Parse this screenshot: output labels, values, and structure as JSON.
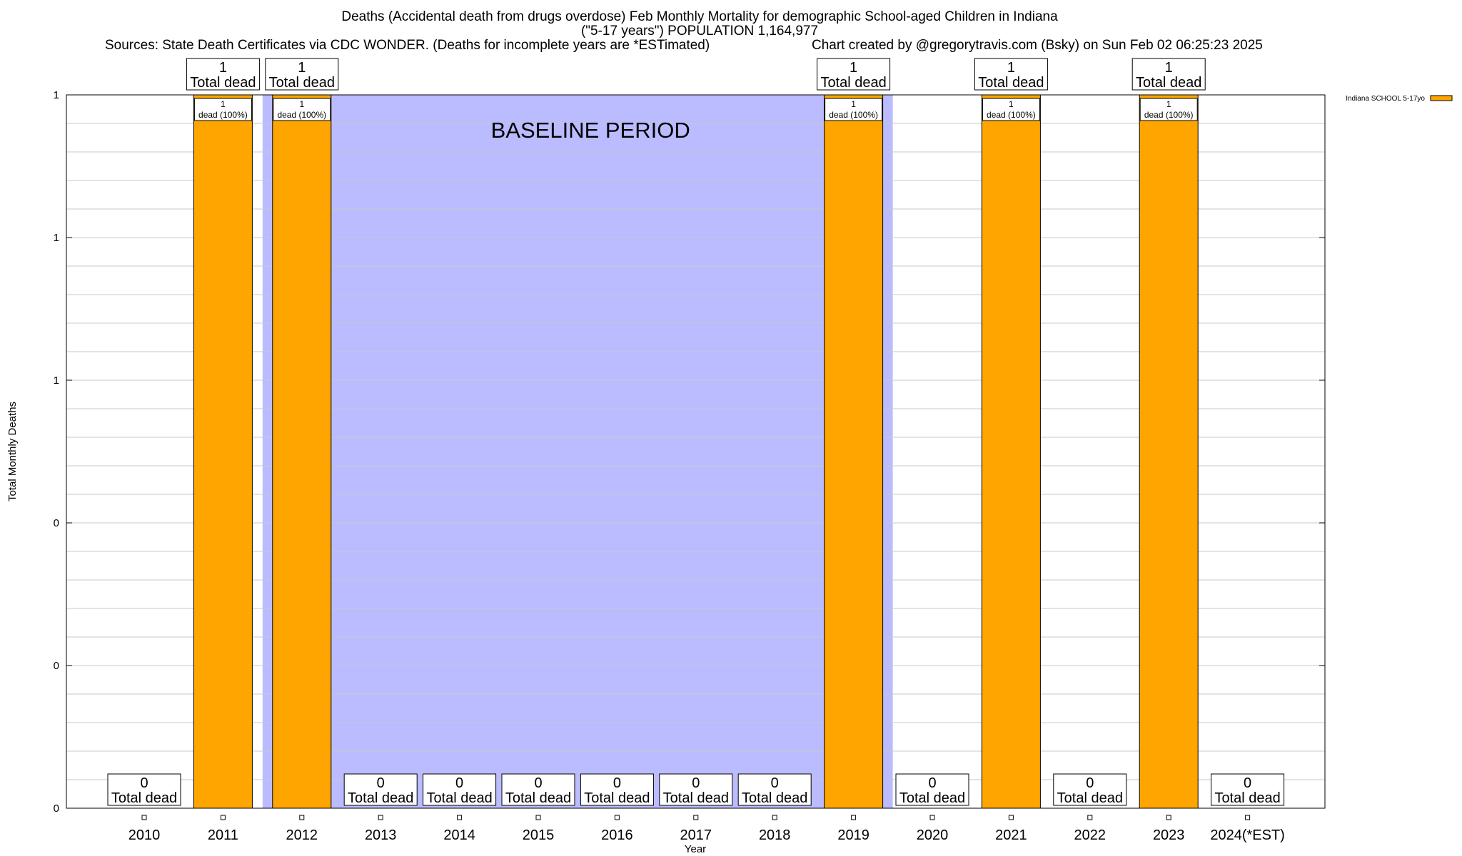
{
  "title": {
    "line1": "Deaths (Accidental death from drugs overdose) Feb Monthly Mortality for demographic School-aged Children in Indiana",
    "line2": "(\"5-17 years\") POPULATION 1,164,977",
    "sources": "Sources: State Death Certificates via CDC WONDER. (Deaths for incomplete years are *ESTimated)",
    "credit": "Chart created by @gregorytravis.com (Bsky) on Sun Feb 02 06:25:23 2025"
  },
  "chart_data": {
    "type": "bar",
    "categories": [
      "2010",
      "2011",
      "2012",
      "2013",
      "2014",
      "2015",
      "2016",
      "2017",
      "2018",
      "2019",
      "2020",
      "2021",
      "2022",
      "2023",
      "2024(*EST)"
    ],
    "series": [
      {
        "name": "Indiana SCHOOL 5-17yo",
        "values": [
          0,
          1,
          1,
          0,
          0,
          0,
          0,
          0,
          0,
          1,
          0,
          1,
          0,
          1,
          0
        ],
        "color": "#FFA500"
      }
    ],
    "xlabel": "Year",
    "ylabel": "Total Monthly Deaths",
    "ylim": [
      0,
      1
    ],
    "ytick_labels": [
      "0",
      "0",
      "0",
      "1",
      "1",
      "1"
    ],
    "total_label": "Total dead",
    "bar_label_suffix": "dead (100%)",
    "baseline": {
      "label": "BASELINE PERIOD",
      "from": "2012",
      "to": "2019",
      "color": "#BBBBFF"
    },
    "legend_position": "top-right",
    "grid": true
  }
}
